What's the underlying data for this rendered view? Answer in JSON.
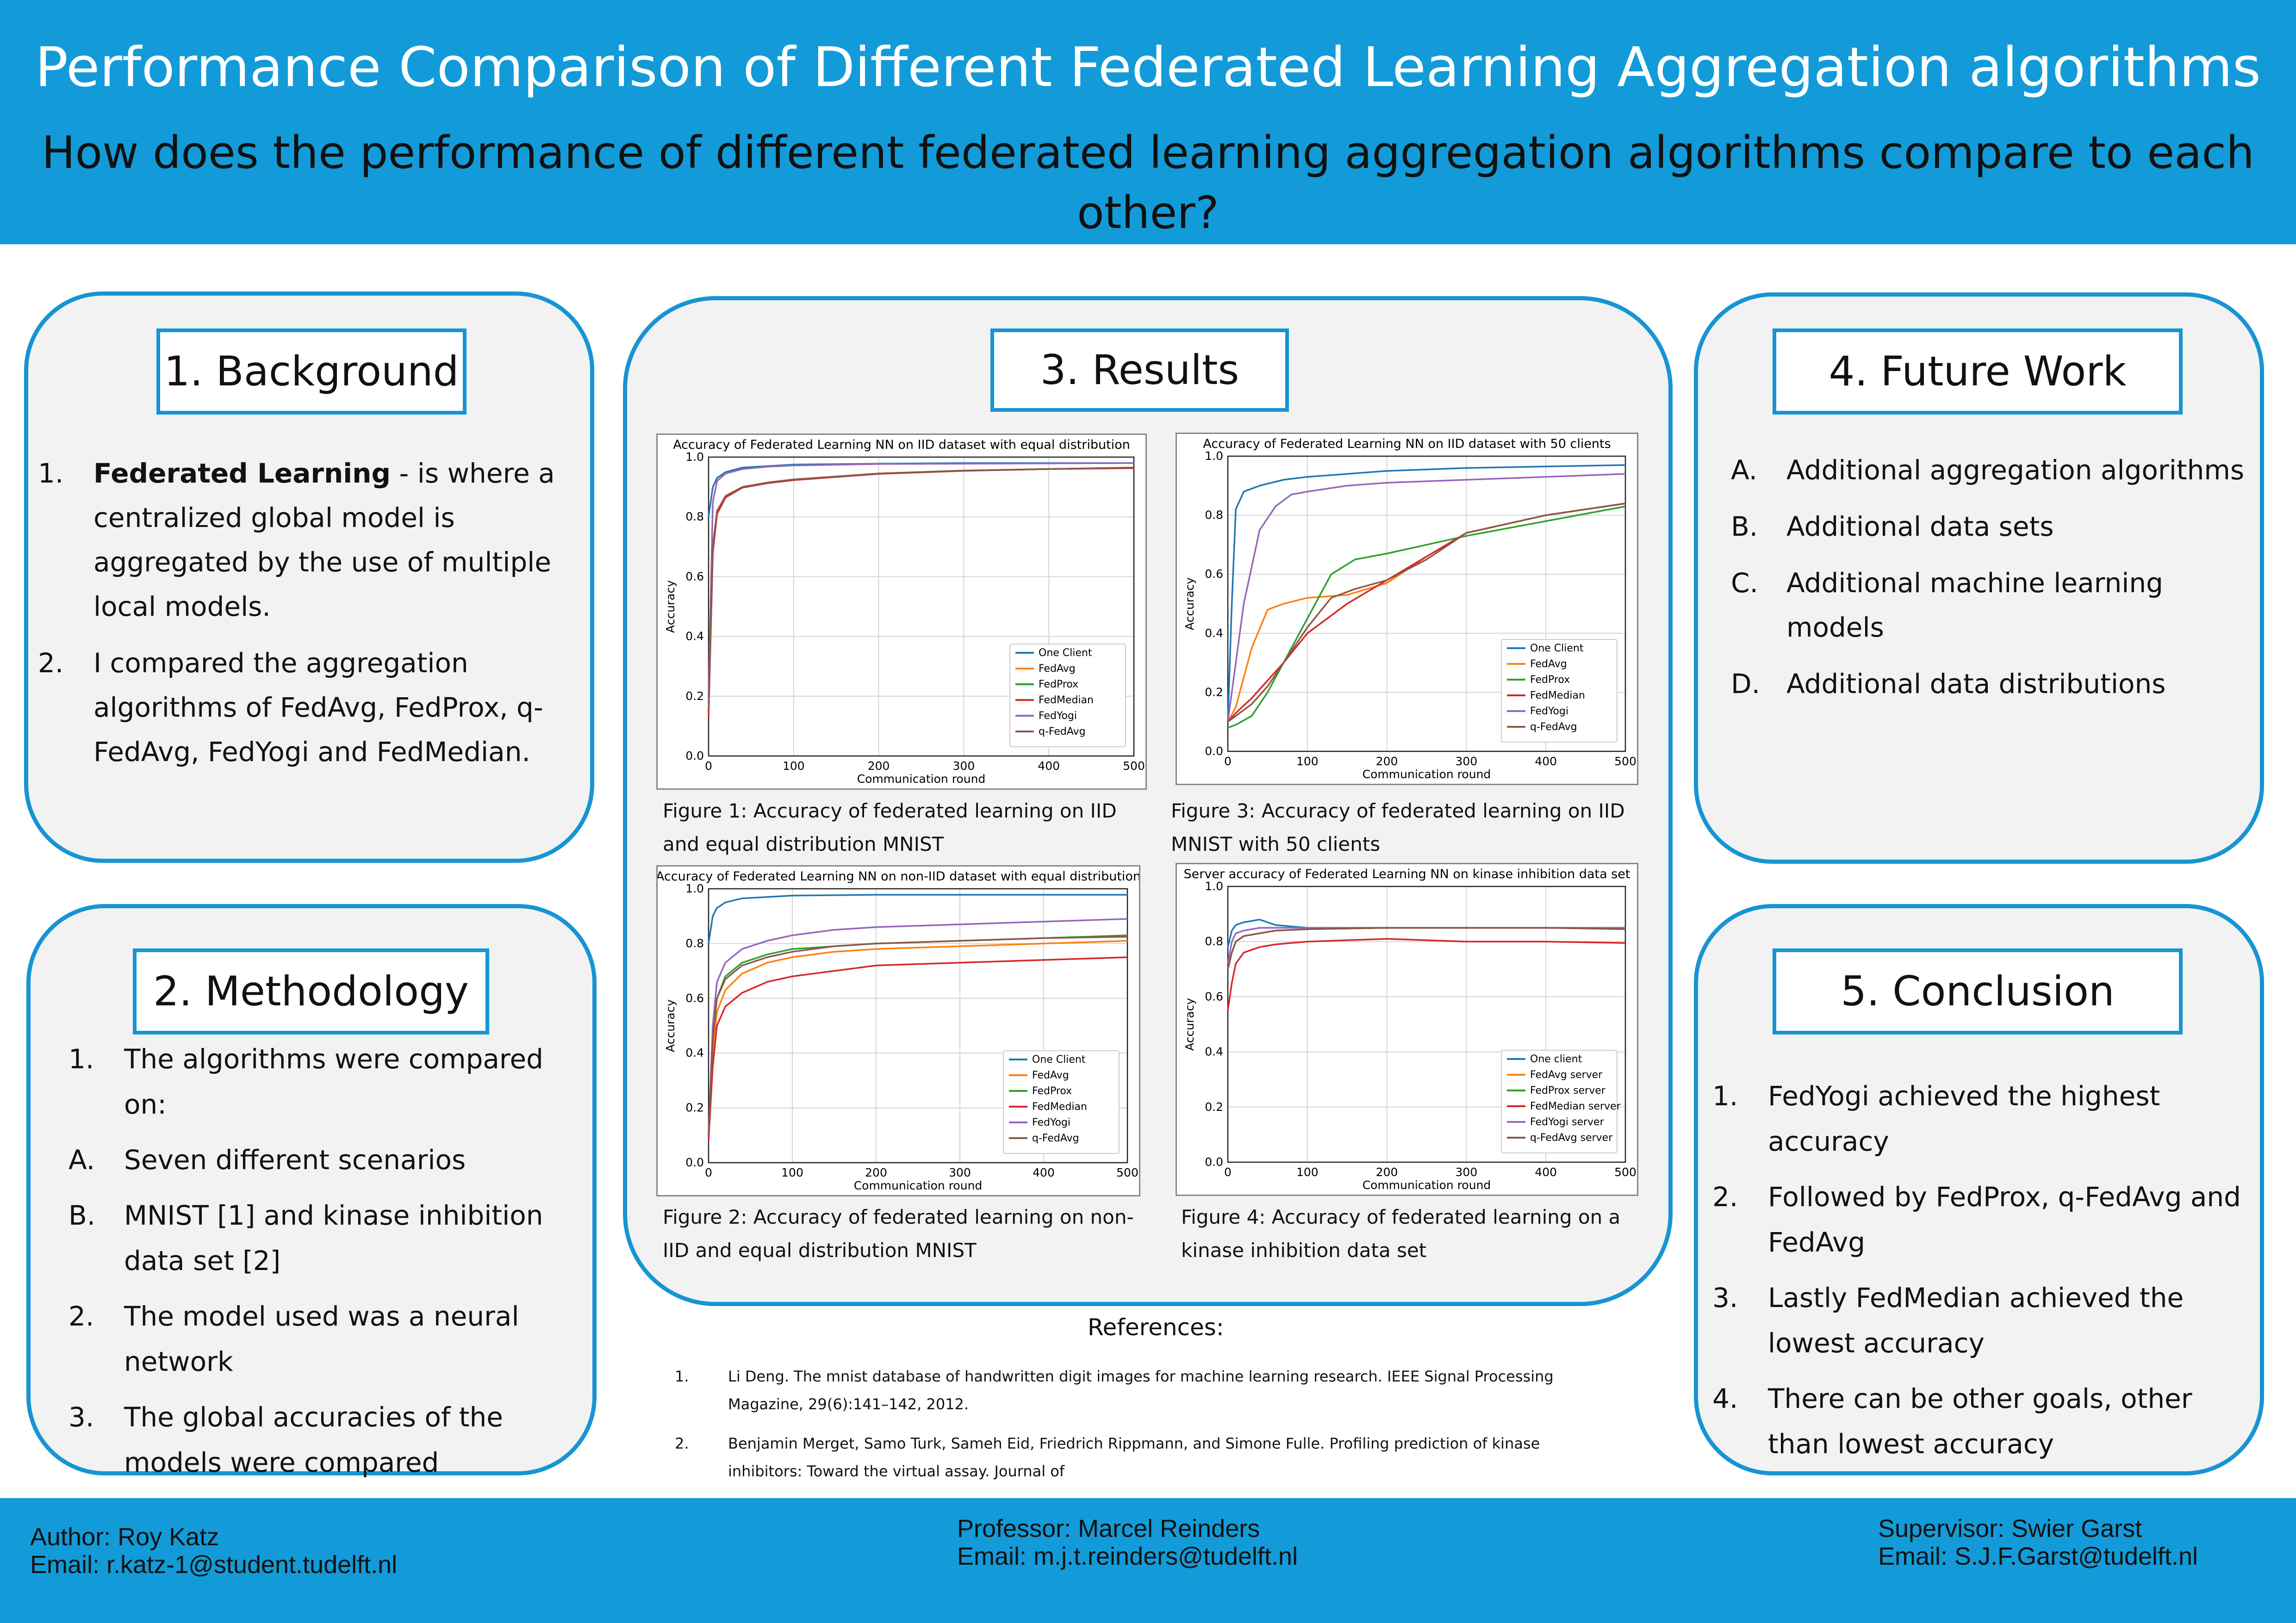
{
  "header": {
    "title": "Performance Comparison of Different Federated Learning Aggregation algorithms",
    "subtitle": "How does the performance of different federated learning aggregation algorithms compare to each other?"
  },
  "background": {
    "title": "1. Background",
    "items": [
      {
        "marker": "1.",
        "bold": "Federated Learning",
        "text": " - is where a centralized global model is aggregated by the use of multiple local models."
      },
      {
        "marker": "2.",
        "bold": "",
        "text": "I compared the aggregation algorithms of FedAvg, FedProx, q-FedAvg, FedYogi and FedMedian."
      }
    ]
  },
  "methodology": {
    "title": "2. Methodology",
    "items": [
      {
        "marker": "1.",
        "text": "The algorithms were compared on:"
      },
      {
        "marker": "A.",
        "text": "Seven different scenarios"
      },
      {
        "marker": "B.",
        "text": "MNIST [1] and kinase inhibition data set [2]"
      },
      {
        "marker": "2.",
        "text": "The model used was a neural network"
      },
      {
        "marker": "3.",
        "text": "The global accuracies of the models were compared"
      }
    ]
  },
  "results": {
    "title": "3. Results",
    "captions": [
      "Figure 1: Accuracy of federated learning on IID and equal distribution MNIST",
      "Figure 3: Accuracy of federated learning on IID MNIST with 50 clients",
      "Figure 2: Accuracy of federated learning on non-IID and equal distribution MNIST",
      "Figure 4: Accuracy of federated learning on a kinase inhibition data set"
    ]
  },
  "future": {
    "title": "4. Future Work",
    "items": [
      {
        "marker": "A.",
        "text": "Additional aggregation algorithms"
      },
      {
        "marker": "B.",
        "text": "Additional data sets"
      },
      {
        "marker": "C.",
        "text": "Additional machine learning models"
      },
      {
        "marker": "D.",
        "text": "Additional data distributions"
      }
    ]
  },
  "conclusion": {
    "title": "5. Conclusion",
    "items": [
      {
        "marker": "1.",
        "text": "FedYogi achieved the highest accuracy"
      },
      {
        "marker": "2.",
        "text": "Followed by FedProx, q-FedAvg and FedAvg"
      },
      {
        "marker": "3.",
        "text": "Lastly FedMedian achieved the lowest accuracy"
      },
      {
        "marker": "4.",
        "text": "There can be other goals, other than lowest accuracy"
      }
    ]
  },
  "references": {
    "title": "References:",
    "items": [
      {
        "marker": "1.",
        "text": "Li Deng. The mnist database of handwritten digit images for machine learning research. IEEE Signal Processing Magazine, 29(6):141–142, 2012."
      },
      {
        "marker": "2.",
        "text": "Benjamin Merget, Samo Turk, Sameh Eid, Friedrich Rippmann, and Simone Fulle. Profiling prediction of kinase inhibitors: Toward the virtual assay. Journal of"
      }
    ]
  },
  "footer": {
    "author": "Author: Roy Katz",
    "author_email": "Email: r.katz-1@student.tudelft.nl",
    "professor": "Professor: Marcel Reinders",
    "professor_email": "Email: m.j.t.reinders@tudelft.nl",
    "supervisor": "Supervisor: Swier Garst",
    "supervisor_email": "Email: S.J.F.Garst@tudelft.nl"
  },
  "colors": {
    "One Client": "#1f77b4",
    "FedAvg": "#ff7f0e",
    "FedProx": "#2ca02c",
    "FedMedian": "#d62728",
    "FedYogi": "#9467bd",
    "q-FedAvg": "#8c564b"
  },
  "chart_data": [
    {
      "type": "line",
      "title": "Accuracy of Federated Learning NN on IID dataset with equal distribution",
      "xlabel": "Communication round",
      "ylabel": "Accuracy",
      "xlim": [
        0,
        500
      ],
      "ylim": [
        0.0,
        1.0
      ],
      "xticks": [
        0,
        100,
        200,
        300,
        400,
        500
      ],
      "yticks": [
        0.0,
        0.2,
        0.4,
        0.6,
        0.8,
        1.0
      ],
      "grid": true,
      "legend": "lower right",
      "series": [
        {
          "name": "One Client",
          "color": "#1f77b4",
          "x": [
            0,
            5,
            10,
            20,
            40,
            70,
            100,
            200,
            300,
            400,
            500
          ],
          "y": [
            0.8,
            0.9,
            0.93,
            0.95,
            0.965,
            0.97,
            0.975,
            0.978,
            0.98,
            0.98,
            0.98
          ]
        },
        {
          "name": "FedAvg",
          "color": "#ff7f0e",
          "x": [
            0,
            5,
            10,
            20,
            40,
            70,
            100,
            200,
            300,
            400,
            500
          ],
          "y": [
            0.15,
            0.7,
            0.82,
            0.87,
            0.9,
            0.915,
            0.925,
            0.945,
            0.955,
            0.96,
            0.965
          ]
        },
        {
          "name": "FedProx",
          "color": "#2ca02c",
          "x": [
            0,
            5,
            10,
            20,
            40,
            70,
            100,
            200,
            300,
            400,
            500
          ],
          "y": [
            0.15,
            0.7,
            0.82,
            0.87,
            0.9,
            0.915,
            0.925,
            0.945,
            0.955,
            0.96,
            0.965
          ]
        },
        {
          "name": "FedMedian",
          "color": "#d62728",
          "x": [
            0,
            5,
            10,
            20,
            40,
            70,
            100,
            200,
            300,
            400,
            500
          ],
          "y": [
            0.13,
            0.68,
            0.81,
            0.865,
            0.898,
            0.913,
            0.923,
            0.944,
            0.954,
            0.96,
            0.963
          ]
        },
        {
          "name": "FedYogi",
          "color": "#9467bd",
          "x": [
            0,
            5,
            10,
            20,
            40,
            70,
            100,
            200,
            300,
            400,
            500
          ],
          "y": [
            0.2,
            0.85,
            0.92,
            0.945,
            0.96,
            0.968,
            0.972,
            0.977,
            0.978,
            0.979,
            0.98
          ]
        },
        {
          "name": "q-FedAvg",
          "color": "#8c564b",
          "x": [
            0,
            5,
            10,
            20,
            40,
            70,
            100,
            200,
            300,
            400,
            500
          ],
          "y": [
            0.15,
            0.7,
            0.82,
            0.87,
            0.9,
            0.915,
            0.925,
            0.945,
            0.955,
            0.96,
            0.965
          ]
        }
      ]
    },
    {
      "type": "line",
      "title": "Accuracy of Federated Learning NN on IID dataset with 50 clients",
      "xlabel": "Communication round",
      "ylabel": "Accuracy",
      "xlim": [
        0,
        500
      ],
      "ylim": [
        0.0,
        1.0
      ],
      "xticks": [
        0,
        100,
        200,
        300,
        400,
        500
      ],
      "yticks": [
        0.0,
        0.2,
        0.4,
        0.6,
        0.8,
        1.0
      ],
      "grid": true,
      "legend": "lower right",
      "series": [
        {
          "name": "One Client",
          "color": "#1f77b4",
          "x": [
            0,
            5,
            10,
            20,
            40,
            70,
            100,
            200,
            300,
            400,
            500
          ],
          "y": [
            0.1,
            0.5,
            0.82,
            0.88,
            0.9,
            0.92,
            0.93,
            0.95,
            0.96,
            0.965,
            0.97
          ]
        },
        {
          "name": "FedAvg",
          "color": "#ff7f0e",
          "x": [
            0,
            10,
            30,
            50,
            70,
            100,
            150,
            200,
            250,
            300,
            400,
            500
          ],
          "y": [
            0.1,
            0.15,
            0.35,
            0.48,
            0.5,
            0.52,
            0.53,
            0.57,
            0.66,
            0.74,
            0.8,
            0.84
          ]
        },
        {
          "name": "FedProx",
          "color": "#2ca02c",
          "x": [
            0,
            10,
            30,
            50,
            70,
            100,
            130,
            160,
            200,
            250,
            300,
            400,
            500
          ],
          "y": [
            0.08,
            0.09,
            0.12,
            0.2,
            0.3,
            0.45,
            0.6,
            0.65,
            0.67,
            0.7,
            0.73,
            0.78,
            0.83
          ]
        },
        {
          "name": "FedMedian",
          "color": "#d62728",
          "x": [
            0,
            10,
            30,
            50,
            70,
            100,
            150,
            200,
            250,
            300,
            400,
            500
          ],
          "y": [
            0.1,
            0.13,
            0.18,
            0.24,
            0.3,
            0.4,
            0.5,
            0.58,
            0.66,
            0.74,
            0.8,
            0.84
          ]
        },
        {
          "name": "FedYogi",
          "color": "#9467bd",
          "x": [
            0,
            10,
            20,
            40,
            60,
            80,
            100,
            150,
            200,
            300,
            400,
            500
          ],
          "y": [
            0.1,
            0.3,
            0.5,
            0.75,
            0.83,
            0.87,
            0.88,
            0.9,
            0.91,
            0.92,
            0.93,
            0.94
          ]
        },
        {
          "name": "q-FedAvg",
          "color": "#8c564b",
          "x": [
            0,
            10,
            30,
            50,
            70,
            100,
            130,
            160,
            200,
            250,
            300,
            400,
            500
          ],
          "y": [
            0.1,
            0.12,
            0.16,
            0.22,
            0.3,
            0.42,
            0.52,
            0.55,
            0.58,
            0.65,
            0.74,
            0.8,
            0.84
          ]
        }
      ]
    },
    {
      "type": "line",
      "title": "Accuracy of Federated Learning NN on non-IID dataset with equal distribution",
      "xlabel": "Communication round",
      "ylabel": "Accuracy",
      "xlim": [
        0,
        500
      ],
      "ylim": [
        0.0,
        1.0
      ],
      "xticks": [
        0,
        100,
        200,
        300,
        400,
        500
      ],
      "yticks": [
        0.0,
        0.2,
        0.4,
        0.6,
        0.8,
        1.0
      ],
      "grid": true,
      "legend": "lower right",
      "series": [
        {
          "name": "One Client",
          "color": "#1f77b4",
          "x": [
            0,
            5,
            10,
            20,
            40,
            70,
            100,
            200,
            300,
            400,
            500
          ],
          "y": [
            0.8,
            0.9,
            0.93,
            0.95,
            0.965,
            0.97,
            0.975,
            0.978,
            0.978,
            0.978,
            0.978
          ]
        },
        {
          "name": "FedAvg",
          "color": "#ff7f0e",
          "x": [
            0,
            5,
            10,
            20,
            40,
            70,
            100,
            150,
            200,
            300,
            400,
            500
          ],
          "y": [
            0.1,
            0.4,
            0.55,
            0.63,
            0.69,
            0.73,
            0.75,
            0.77,
            0.78,
            0.79,
            0.8,
            0.81
          ]
        },
        {
          "name": "FedProx",
          "color": "#2ca02c",
          "x": [
            0,
            5,
            10,
            20,
            40,
            70,
            100,
            150,
            200,
            300,
            400,
            500
          ],
          "y": [
            0.1,
            0.45,
            0.6,
            0.68,
            0.73,
            0.76,
            0.78,
            0.79,
            0.8,
            0.81,
            0.82,
            0.83
          ]
        },
        {
          "name": "FedMedian",
          "color": "#d62728",
          "x": [
            0,
            5,
            10,
            20,
            40,
            70,
            100,
            150,
            200,
            300,
            400,
            500
          ],
          "y": [
            0.08,
            0.35,
            0.5,
            0.57,
            0.62,
            0.66,
            0.68,
            0.7,
            0.72,
            0.73,
            0.74,
            0.75
          ]
        },
        {
          "name": "FedYogi",
          "color": "#9467bd",
          "x": [
            0,
            5,
            10,
            20,
            40,
            70,
            100,
            150,
            200,
            300,
            400,
            500
          ],
          "y": [
            0.1,
            0.5,
            0.66,
            0.73,
            0.78,
            0.81,
            0.83,
            0.85,
            0.86,
            0.87,
            0.88,
            0.89
          ]
        },
        {
          "name": "q-FedAvg",
          "color": "#8c564b",
          "x": [
            0,
            5,
            10,
            20,
            40,
            70,
            100,
            150,
            200,
            300,
            400,
            500
          ],
          "y": [
            0.1,
            0.45,
            0.6,
            0.67,
            0.72,
            0.75,
            0.77,
            0.79,
            0.8,
            0.81,
            0.82,
            0.825
          ]
        }
      ]
    },
    {
      "type": "line",
      "title": "Server accuracy of Federated Learning NN on kinase inhibition data set",
      "xlabel": "Communication round",
      "ylabel": "Accuracy",
      "xlim": [
        0,
        500
      ],
      "ylim": [
        0.0,
        1.0
      ],
      "xticks": [
        0,
        100,
        200,
        300,
        400,
        500
      ],
      "yticks": [
        0.0,
        0.2,
        0.4,
        0.6,
        0.8,
        1.0
      ],
      "grid": true,
      "legend": "lower right",
      "series": [
        {
          "name": "One client",
          "color": "#1f77b4",
          "x": [
            0,
            5,
            10,
            20,
            40,
            60,
            100,
            200,
            300,
            400,
            500
          ],
          "y": [
            0.78,
            0.84,
            0.86,
            0.87,
            0.88,
            0.86,
            0.85,
            0.85,
            0.85,
            0.85,
            0.85
          ]
        },
        {
          "name": "FedAvg server",
          "color": "#ff7f0e",
          "x": [
            0,
            5,
            10,
            20,
            40,
            60,
            100,
            200,
            300,
            400,
            500
          ],
          "y": [
            0.7,
            0.76,
            0.8,
            0.82,
            0.83,
            0.84,
            0.845,
            0.85,
            0.85,
            0.85,
            0.85
          ]
        },
        {
          "name": "FedProx server",
          "color": "#2ca02c",
          "x": [
            0,
            5,
            10,
            20,
            40,
            60,
            100,
            200,
            300,
            400,
            500
          ],
          "y": [
            0.7,
            0.76,
            0.8,
            0.82,
            0.83,
            0.84,
            0.845,
            0.85,
            0.85,
            0.85,
            0.85
          ]
        },
        {
          "name": "FedMedian server",
          "color": "#d62728",
          "x": [
            0,
            5,
            10,
            20,
            40,
            60,
            100,
            200,
            300,
            400,
            500
          ],
          "y": [
            0.55,
            0.65,
            0.72,
            0.76,
            0.78,
            0.79,
            0.8,
            0.81,
            0.8,
            0.8,
            0.795
          ]
        },
        {
          "name": "FedYogi server",
          "color": "#9467bd",
          "x": [
            0,
            5,
            10,
            20,
            40,
            60,
            100,
            200,
            300,
            400,
            500
          ],
          "y": [
            0.72,
            0.8,
            0.83,
            0.84,
            0.85,
            0.85,
            0.85,
            0.85,
            0.85,
            0.85,
            0.85
          ]
        },
        {
          "name": "q-FedAvg server",
          "color": "#8c564b",
          "x": [
            0,
            5,
            10,
            20,
            40,
            60,
            100,
            200,
            300,
            400,
            500
          ],
          "y": [
            0.7,
            0.76,
            0.8,
            0.82,
            0.83,
            0.84,
            0.845,
            0.85,
            0.85,
            0.85,
            0.845
          ]
        }
      ]
    }
  ]
}
